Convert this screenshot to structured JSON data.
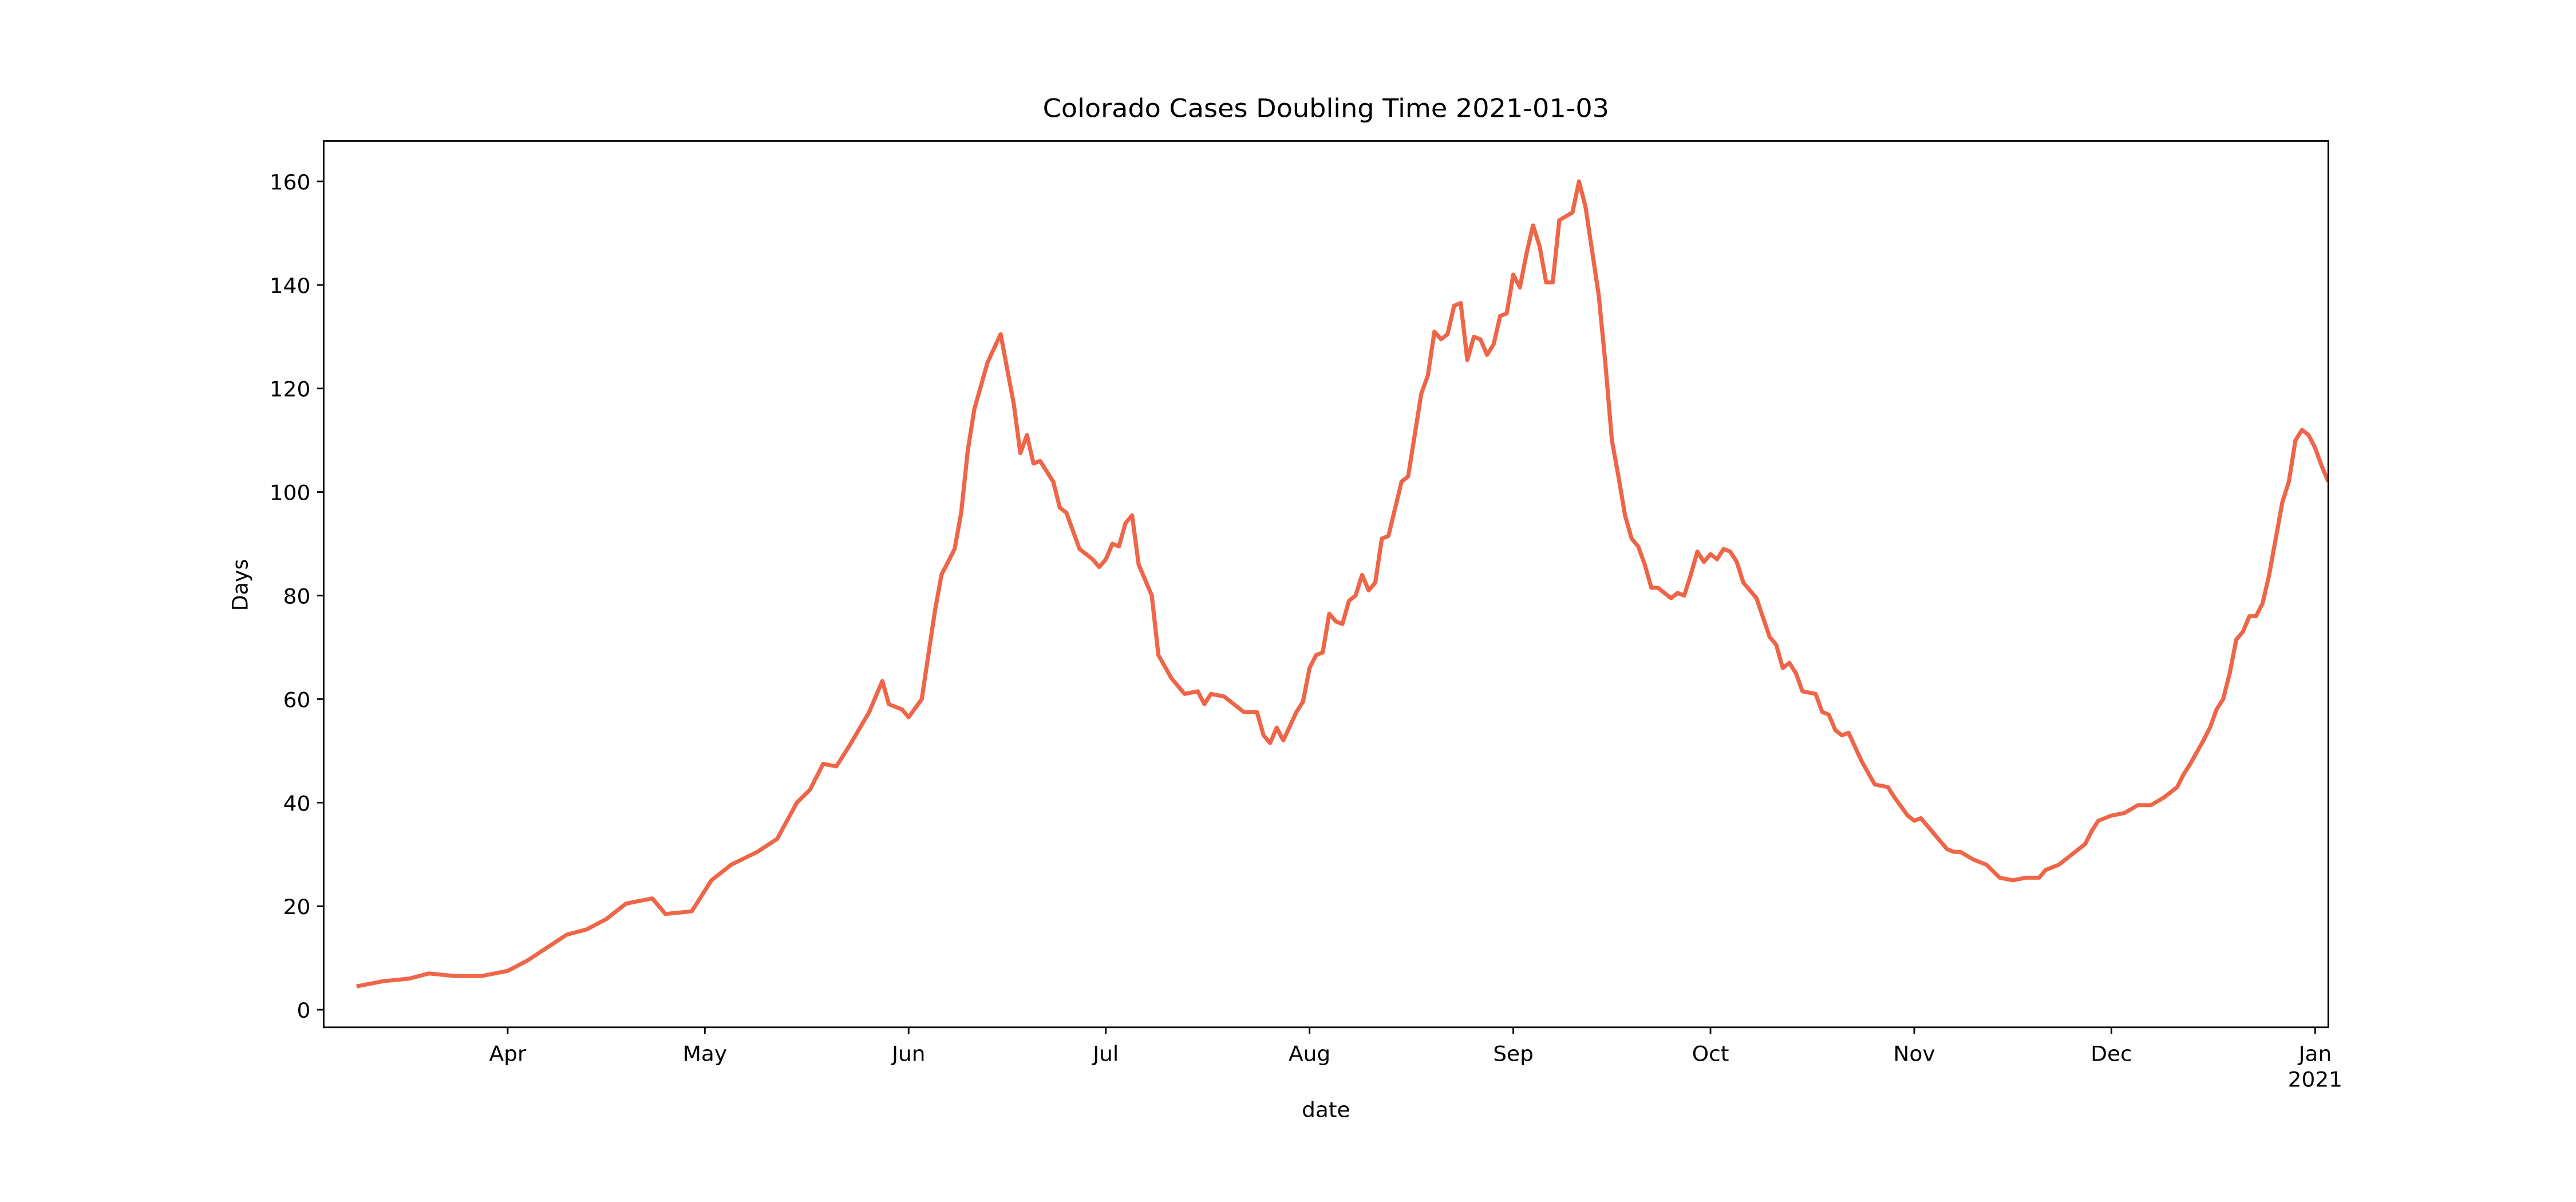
{
  "chart_data": {
    "type": "line",
    "title": "Colorado Cases Doubling Time 2021-01-03",
    "xlabel": "date",
    "ylabel": "Days",
    "x": [
      "2020-03-09",
      "2020-03-13",
      "2020-03-17",
      "2020-03-20",
      "2020-03-24",
      "2020-03-28",
      "2020-04-01",
      "2020-04-04",
      "2020-04-07",
      "2020-04-10",
      "2020-04-13",
      "2020-04-16",
      "2020-04-19",
      "2020-04-23",
      "2020-04-25",
      "2020-04-29",
      "2020-05-02",
      "2020-05-05",
      "2020-05-09",
      "2020-05-12",
      "2020-05-15",
      "2020-05-17",
      "2020-05-19",
      "2020-05-21",
      "2020-05-23",
      "2020-05-26",
      "2020-05-28",
      "2020-05-29",
      "2020-05-31",
      "2020-06-01",
      "2020-06-03",
      "2020-06-05",
      "2020-06-06",
      "2020-06-08",
      "2020-06-09",
      "2020-06-10",
      "2020-06-11",
      "2020-06-13",
      "2020-06-15",
      "2020-06-17",
      "2020-06-18",
      "2020-06-19",
      "2020-06-20",
      "2020-06-21",
      "2020-06-23",
      "2020-06-24",
      "2020-06-25",
      "2020-06-27",
      "2020-06-29",
      "2020-06-30",
      "2020-07-01",
      "2020-07-02",
      "2020-07-03",
      "2020-07-04",
      "2020-07-05",
      "2020-07-06",
      "2020-07-08",
      "2020-07-09",
      "2020-07-11",
      "2020-07-13",
      "2020-07-15",
      "2020-07-16",
      "2020-07-17",
      "2020-07-19",
      "2020-07-21",
      "2020-07-22",
      "2020-07-24",
      "2020-07-25",
      "2020-07-26",
      "2020-07-27",
      "2020-07-28",
      "2020-07-30",
      "2020-07-31",
      "2020-08-01",
      "2020-08-02",
      "2020-08-03",
      "2020-08-04",
      "2020-08-05",
      "2020-08-06",
      "2020-08-07",
      "2020-08-08",
      "2020-08-09",
      "2020-08-10",
      "2020-08-11",
      "2020-08-12",
      "2020-08-13",
      "2020-08-15",
      "2020-08-16",
      "2020-08-18",
      "2020-08-19",
      "2020-08-20",
      "2020-08-21",
      "2020-08-22",
      "2020-08-23",
      "2020-08-24",
      "2020-08-25",
      "2020-08-26",
      "2020-08-27",
      "2020-08-28",
      "2020-08-29",
      "2020-08-30",
      "2020-08-31",
      "2020-09-01",
      "2020-09-02",
      "2020-09-03",
      "2020-09-04",
      "2020-09-05",
      "2020-09-06",
      "2020-09-07",
      "2020-09-08",
      "2020-09-10",
      "2020-09-11",
      "2020-09-12",
      "2020-09-14",
      "2020-09-15",
      "2020-09-16",
      "2020-09-17",
      "2020-09-18",
      "2020-09-19",
      "2020-09-20",
      "2020-09-21",
      "2020-09-22",
      "2020-09-23",
      "2020-09-24",
      "2020-09-25",
      "2020-09-26",
      "2020-09-27",
      "2020-09-28",
      "2020-09-29",
      "2020-09-30",
      "2020-10-01",
      "2020-10-02",
      "2020-10-03",
      "2020-10-04",
      "2020-10-05",
      "2020-10-06",
      "2020-10-08",
      "2020-10-10",
      "2020-10-11",
      "2020-10-12",
      "2020-10-13",
      "2020-10-14",
      "2020-10-15",
      "2020-10-17",
      "2020-10-18",
      "2020-10-19",
      "2020-10-20",
      "2020-10-21",
      "2020-10-22",
      "2020-10-24",
      "2020-10-26",
      "2020-10-28",
      "2020-10-29",
      "2020-10-31",
      "2020-11-01",
      "2020-11-02",
      "2020-11-04",
      "2020-11-06",
      "2020-11-07",
      "2020-11-08",
      "2020-11-10",
      "2020-11-12",
      "2020-11-14",
      "2020-11-16",
      "2020-11-18",
      "2020-11-20",
      "2020-11-21",
      "2020-11-23",
      "2020-11-25",
      "2020-11-27",
      "2020-11-28",
      "2020-11-29",
      "2020-12-01",
      "2020-12-03",
      "2020-12-05",
      "2020-12-07",
      "2020-12-09",
      "2020-12-11",
      "2020-12-12",
      "2020-12-13",
      "2020-12-15",
      "2020-12-16",
      "2020-12-17",
      "2020-12-18",
      "2020-12-19",
      "2020-12-20",
      "2020-12-21",
      "2020-12-22",
      "2020-12-23",
      "2020-12-24",
      "2020-12-25",
      "2020-12-26",
      "2020-12-27",
      "2020-12-28",
      "2020-12-29",
      "2020-12-30",
      "2020-12-31",
      "2021-01-01",
      "2021-01-02",
      "2021-01-03"
    ],
    "series": [
      {
        "name": "Days",
        "color": "#ef6548",
        "values": [
          4.5,
          5.5,
          6,
          7,
          6.5,
          6.5,
          7.5,
          9.5,
          12,
          14.5,
          15.5,
          17.5,
          20.5,
          21.5,
          18.5,
          19,
          25,
          28,
          30.5,
          33,
          40,
          42.5,
          47.5,
          47,
          51,
          57.5,
          63.5,
          59,
          58,
          56.5,
          60,
          77,
          84,
          89,
          96,
          108,
          116,
          125,
          130.5,
          117,
          107.5,
          111,
          105.5,
          106,
          102,
          97,
          96,
          89,
          87,
          85.5,
          87,
          90,
          89.5,
          94,
          95.5,
          86,
          80,
          68.5,
          64,
          61,
          61.5,
          59,
          61,
          60.5,
          58.5,
          57.5,
          57.5,
          53,
          51.5,
          54.5,
          52,
          57.5,
          59.5,
          66,
          68.5,
          69,
          76.5,
          75,
          74.5,
          79,
          80,
          84,
          81,
          82.5,
          91,
          91.5,
          102,
          103,
          119,
          122.5,
          131,
          129.5,
          130.5,
          136,
          136.5,
          125.5,
          130,
          129.5,
          126.5,
          128.5,
          134,
          134.5,
          142,
          139.5,
          146,
          151.5,
          147.5,
          140.5,
          140.5,
          152.5,
          154,
          160,
          155,
          138,
          125,
          110,
          103,
          95.5,
          91,
          89.5,
          86,
          81.5,
          81.5,
          80.5,
          79.5,
          80.5,
          80,
          84,
          88.5,
          86.5,
          88,
          87,
          89,
          88.5,
          86.5,
          82.5,
          79.5,
          72,
          70.5,
          66,
          67,
          65,
          61.5,
          61,
          57.5,
          57,
          54,
          53,
          53.5,
          48,
          43.5,
          43,
          41,
          37.5,
          36.5,
          37,
          34,
          31,
          30.5,
          30.5,
          29,
          28,
          25.5,
          25,
          25.5,
          25.5,
          27,
          28,
          30,
          32,
          34.5,
          36.5,
          37.5,
          38,
          39.5,
          39.5,
          41,
          43,
          45.5,
          47.5,
          52,
          54.5,
          58,
          60,
          65,
          71.5,
          73,
          76,
          76,
          78.5,
          84,
          91,
          98,
          102,
          110,
          112,
          111,
          108.5,
          105,
          102
        ]
      }
    ],
    "xlim": [
      "2020-03-04",
      "2021-01-03"
    ],
    "xticks": [
      {
        "value": "2020-04-01",
        "label": "Apr"
      },
      {
        "value": "2020-05-01",
        "label": "May"
      },
      {
        "value": "2020-06-01",
        "label": "Jun"
      },
      {
        "value": "2020-07-01",
        "label": "Jul"
      },
      {
        "value": "2020-08-01",
        "label": "Aug"
      },
      {
        "value": "2020-09-01",
        "label": "Sep"
      },
      {
        "value": "2020-10-01",
        "label": "Oct"
      },
      {
        "value": "2020-11-01",
        "label": "Nov"
      },
      {
        "value": "2020-12-01",
        "label": "Dec"
      },
      {
        "value": "2021-01-01",
        "label": "Jan\n2021"
      }
    ],
    "ylim": [
      -3.4,
      167.8
    ],
    "yticks": [
      0,
      20,
      40,
      60,
      80,
      100,
      120,
      140,
      160
    ],
    "grid": false,
    "legend": false
  }
}
